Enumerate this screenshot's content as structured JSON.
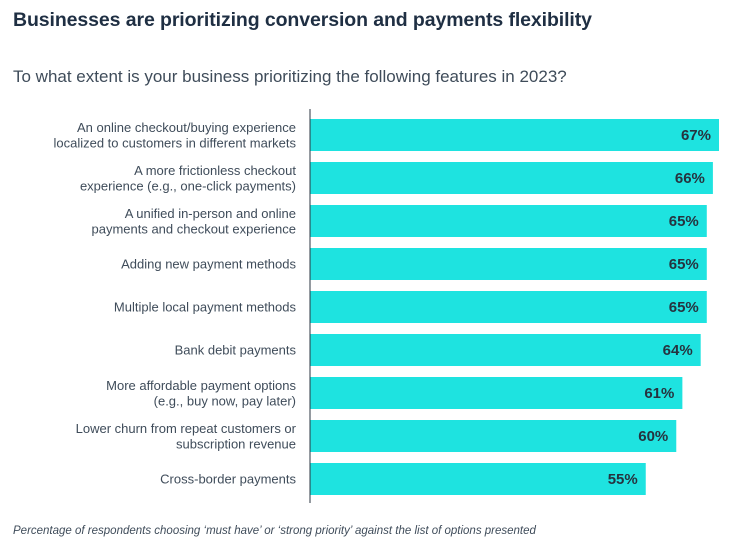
{
  "title": "Businesses are prioritizing conversion and payments flexibility",
  "subtitle": "To what extent is your business prioritizing the following features in 2023?",
  "footnote": "Percentage of respondents choosing ‘must have’ or ‘strong priority’ against the list of options presented",
  "colors": {
    "bar": "#1ee3e0",
    "axis": "#2b3640",
    "text": "#3f4c5a",
    "value_text": "#26333f",
    "title": "#1f2f43"
  },
  "chart_data": {
    "type": "bar",
    "orientation": "horizontal",
    "categories": [
      [
        "An online checkout/buying experience",
        "localized to customers in different markets"
      ],
      [
        "A more frictionless checkout",
        "experience (e.g., one-click payments)"
      ],
      [
        "A unified in-person and online",
        "payments and checkout experience"
      ],
      [
        "Adding new payment methods"
      ],
      [
        "Multiple local payment methods"
      ],
      [
        "Bank debit payments"
      ],
      [
        "More affordable payment options",
        "(e.g., buy now, pay later)"
      ],
      [
        "Lower churn from repeat customers or",
        "subscription revenue"
      ],
      [
        "Cross-border payments"
      ]
    ],
    "values": [
      67,
      66,
      65,
      65,
      65,
      64,
      61,
      60,
      55
    ],
    "value_labels": [
      "67%",
      "66%",
      "65%",
      "65%",
      "65%",
      "64%",
      "61%",
      "60%",
      "55%"
    ],
    "title": "Businesses are prioritizing conversion and payments flexibility",
    "xlabel": "",
    "ylabel": "",
    "xlim": [
      0,
      67
    ],
    "grid": false,
    "legend": "none"
  }
}
